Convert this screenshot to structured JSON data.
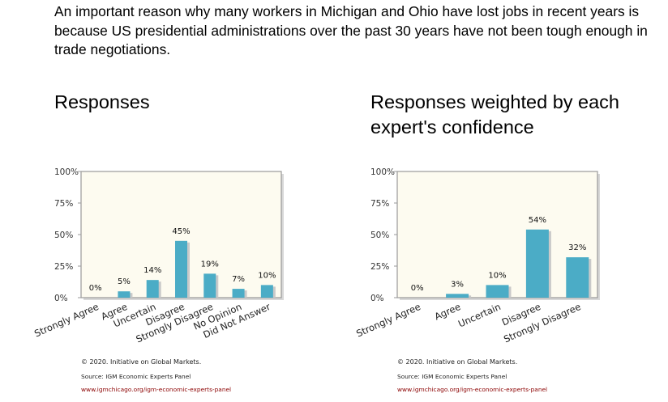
{
  "question": "An important reason why many workers in Michigan and Ohio have lost jobs in recent years is because US presidential administrations over the past 30 years have not been tough enough in trade negotiations.",
  "colors": {
    "bar": "#4bacc6",
    "plot_bg": "#fdfbf0",
    "border": "#9a9a9a",
    "link": "#8b0000"
  },
  "chart_data": [
    {
      "type": "bar",
      "title": "Responses",
      "categories": [
        "Strongly Agree",
        "Agree",
        "Uncertain",
        "Disagree",
        "Strongly Disagree",
        "No Opinion",
        "Did Not Answer"
      ],
      "values": [
        0,
        5,
        14,
        45,
        19,
        7,
        10
      ],
      "value_labels": [
        "0%",
        "5%",
        "14%",
        "45%",
        "19%",
        "7%",
        "10%"
      ],
      "y_ticks": [
        "0%",
        "25%",
        "50%",
        "75%",
        "100%"
      ],
      "ylim": [
        0,
        100
      ],
      "grid": false,
      "footer": {
        "copyright": "© 2020. Initiative on Global Markets.",
        "source": "Source: IGM Economic Experts Panel",
        "link": "www.igmchicago.org/igm-economic-experts-panel"
      }
    },
    {
      "type": "bar",
      "title": "Responses weighted by each expert's confidence",
      "categories": [
        "Strongly Agree",
        "Agree",
        "Uncertain",
        "Disagree",
        "Strongly Disagree"
      ],
      "values": [
        0,
        3,
        10,
        54,
        32
      ],
      "value_labels": [
        "0%",
        "3%",
        "10%",
        "54%",
        "32%"
      ],
      "y_ticks": [
        "0%",
        "25%",
        "50%",
        "75%",
        "100%"
      ],
      "ylim": [
        0,
        100
      ],
      "grid": false,
      "footer": {
        "copyright": "© 2020. Initiative on Global Markets.",
        "source": "Source: IGM Economic Experts Panel",
        "link": "www.igmchicago.org/igm-economic-experts-panel"
      }
    }
  ]
}
